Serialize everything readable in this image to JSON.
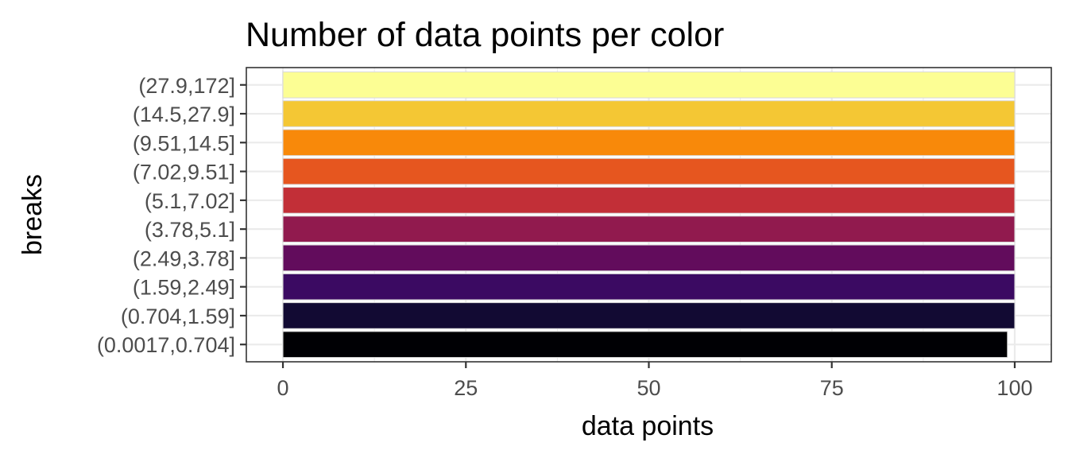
{
  "chart_data": {
    "type": "bar",
    "orientation": "horizontal",
    "title": "Number of data points per color",
    "xlabel": "data points",
    "ylabel": "breaks",
    "xlim": [
      0,
      100
    ],
    "xticks": [
      0,
      25,
      50,
      75,
      100
    ],
    "categories": [
      "(0.0017,0.704]",
      "(0.704,1.59]",
      "(1.59,2.49]",
      "(2.49,3.78]",
      "(3.78,5.1]",
      "(5.1,7.02]",
      "(7.02,9.51]",
      "(9.51,14.5]",
      "(14.5,27.9]",
      "(27.9,172]"
    ],
    "values": [
      99,
      100,
      100,
      100,
      100,
      100,
      100,
      100,
      100,
      100
    ],
    "colors": [
      "#000004",
      "#120a33",
      "#3b0a62",
      "#620c5c",
      "#911a4e",
      "#c22f37",
      "#e6561f",
      "#f8890a",
      "#f4c734",
      "#fcfe94"
    ],
    "grid": true,
    "legend": "none"
  }
}
